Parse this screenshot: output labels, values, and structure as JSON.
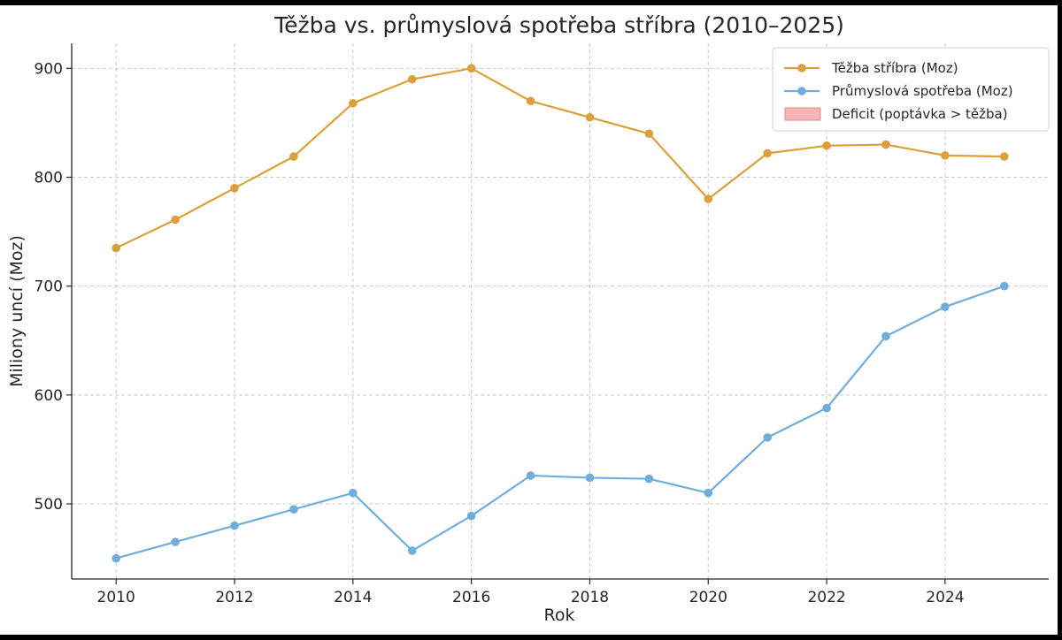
{
  "colors": {
    "mining": "#DBA039",
    "consumption": "#6FAEDC",
    "deficit_fill": "#F4B6B4",
    "deficit_edge": "#E58C8A",
    "axis": "#262626",
    "grid": "#C9C9C9"
  },
  "chart_data": {
    "type": "line",
    "title": "Těžba vs. průmyslová spotřeba stříbra (2010–2025)",
    "xlabel": "Rok",
    "ylabel": "Miliony uncí (Moz)",
    "x": [
      2010,
      2011,
      2012,
      2013,
      2014,
      2015,
      2016,
      2017,
      2018,
      2019,
      2020,
      2021,
      2022,
      2023,
      2024,
      2025
    ],
    "x_ticks": [
      "2010",
      "2012",
      "2014",
      "2016",
      "2018",
      "2020",
      "2022",
      "2024"
    ],
    "x_tick_values": [
      2010,
      2012,
      2014,
      2016,
      2018,
      2020,
      2022,
      2024
    ],
    "y_ticks": [
      "500",
      "600",
      "700",
      "800",
      "900"
    ],
    "y_tick_values": [
      500,
      600,
      700,
      800,
      900
    ],
    "xlim": [
      2009.25,
      2025.75
    ],
    "ylim": [
      431,
      923
    ],
    "grid": true,
    "legend_position": "top-right",
    "series": [
      {
        "name": "Těžba stříbra (Moz)",
        "color": "#DBA039",
        "values": [
          735,
          761,
          790,
          819,
          868,
          890,
          900,
          870,
          855,
          840,
          780,
          822,
          829,
          830,
          820,
          819
        ]
      },
      {
        "name": "Průmyslová spotřeba (Moz)",
        "color": "#6FAEDC",
        "values": [
          450,
          465,
          480,
          495,
          510,
          457,
          489,
          526,
          524,
          523,
          510,
          561,
          588,
          654,
          681,
          700
        ]
      }
    ],
    "legend": [
      {
        "label": "Těžba stříbra (Moz)",
        "kind": "line",
        "color": "#DBA039"
      },
      {
        "label": "Průmyslová spotřeba (Moz)",
        "kind": "line",
        "color": "#6FAEDC"
      },
      {
        "label": "Deficit (poptávka > těžba)",
        "kind": "patch",
        "color": "#F4B6B4"
      }
    ]
  }
}
